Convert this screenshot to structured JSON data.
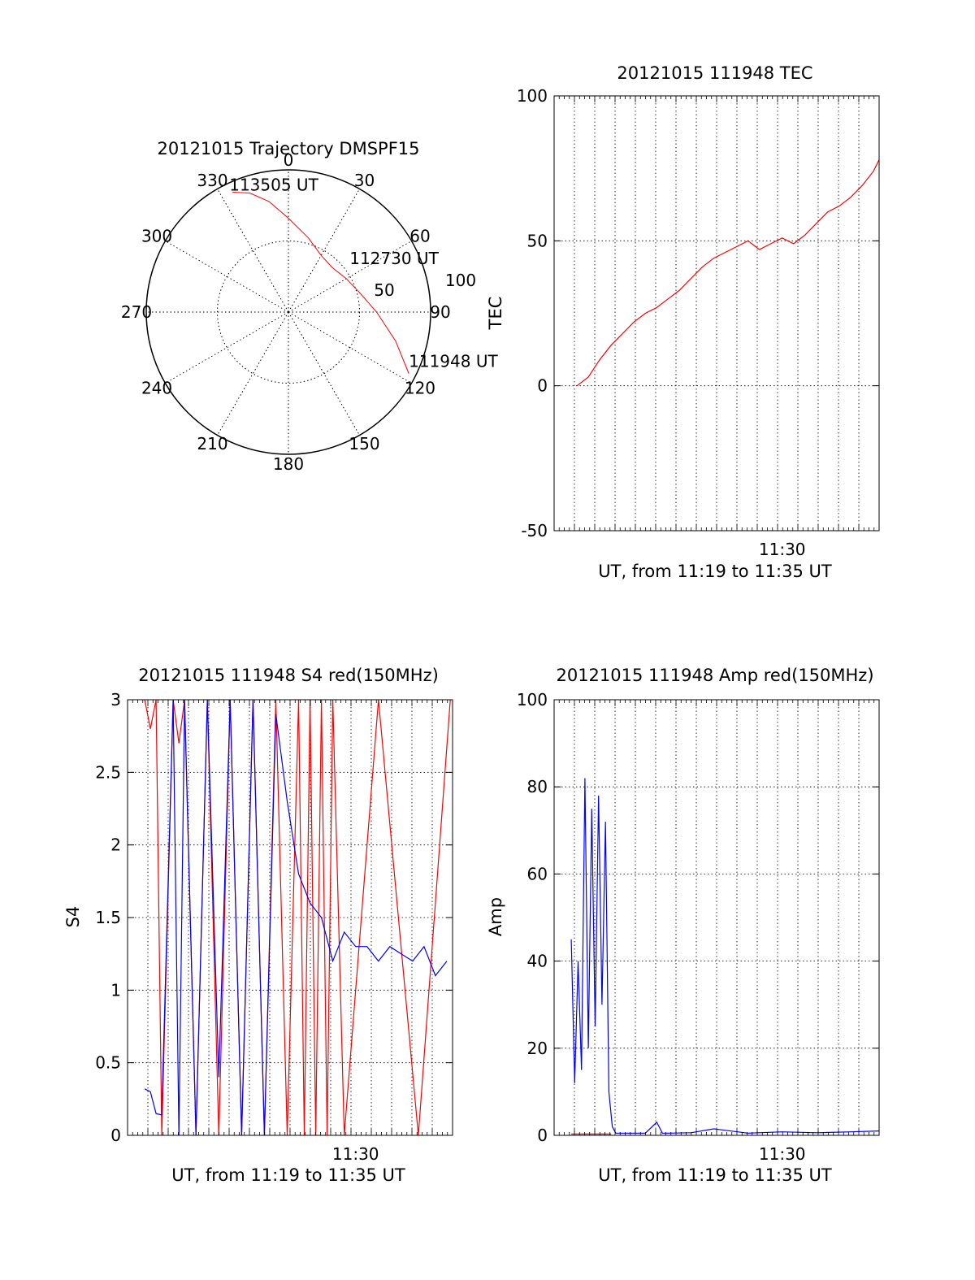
{
  "chart_data": [
    {
      "type": "polar",
      "title": "20121015 Trajectory DMSPF15",
      "azimuth_labels": [
        "0",
        "30",
        "60",
        "90",
        "120",
        "150",
        "180",
        "210",
        "240",
        "270",
        "300",
        "330"
      ],
      "radius_labels": [
        "50",
        "100"
      ],
      "rlim": [
        0,
        100
      ],
      "grid": true,
      "trajectory_color": "#ff0000",
      "trajectory": [
        {
          "az": 117,
          "el_dist": 95
        },
        {
          "az": 105,
          "el_dist": 78
        },
        {
          "az": 90,
          "el_dist": 62
        },
        {
          "az": 75,
          "el_dist": 52
        },
        {
          "az": 60,
          "el_dist": 47
        },
        {
          "az": 45,
          "el_dist": 44
        },
        {
          "az": 30,
          "el_dist": 46
        },
        {
          "az": 15,
          "el_dist": 54
        },
        {
          "az": 0,
          "el_dist": 66
        },
        {
          "az": -10,
          "el_dist": 79
        },
        {
          "az": -18,
          "el_dist": 88
        },
        {
          "az": -25,
          "el_dist": 93
        }
      ],
      "annotations": [
        {
          "text": "113505 UT",
          "az": -25,
          "el_dist": 93
        },
        {
          "text": "112730 UT",
          "az": 60,
          "el_dist": 47
        },
        {
          "text": "111948 UT",
          "az": 117,
          "el_dist": 95
        }
      ]
    },
    {
      "type": "line",
      "title": "20121015 111948 TEC",
      "xlabel": "UT, from 11:19 to 11:35 UT",
      "ylabel": "TEC",
      "xlim": [
        11.3,
        11.585
      ],
      "ylim": [
        -50,
        100
      ],
      "yticks": [
        -50,
        0,
        50,
        100
      ],
      "xtick_labels": [
        {
          "x": 11.5,
          "label": "11:30"
        }
      ],
      "grid": true,
      "series": [
        {
          "color": "#ff0000",
          "x": [
            11.32,
            11.33,
            11.34,
            11.35,
            11.36,
            11.37,
            11.38,
            11.39,
            11.4,
            11.41,
            11.42,
            11.43,
            11.44,
            11.45,
            11.46,
            11.47,
            11.48,
            11.49,
            11.5,
            11.51,
            11.52,
            11.53,
            11.54,
            11.55,
            11.56,
            11.57,
            11.58,
            11.585
          ],
          "values": [
            0,
            3,
            9,
            14,
            18,
            22,
            25,
            27,
            30,
            33,
            37,
            41,
            44,
            46,
            48,
            50,
            47,
            49,
            51,
            49,
            52,
            56,
            60,
            62,
            65,
            69,
            74,
            78
          ]
        }
      ]
    },
    {
      "type": "line",
      "title": "20121015 111948 S4 red(150MHz)",
      "xlabel": "UT, from 11:19 to 11:35 UT",
      "ylabel": "S4",
      "xlim": [
        11.3,
        11.585
      ],
      "ylim": [
        0,
        3
      ],
      "yticks": [
        0,
        0.5,
        1,
        1.5,
        2,
        2.5,
        3
      ],
      "ytick_labels": [
        "0",
        "0.5",
        "1",
        "1.5",
        "2",
        "2.5",
        "3"
      ],
      "xtick_labels": [
        {
          "x": 11.5,
          "label": "11:30"
        }
      ],
      "grid": true,
      "series": [
        {
          "color": "#ff0000",
          "x": [
            11.315,
            11.32,
            11.325,
            11.33,
            11.34,
            11.345,
            11.35,
            11.36,
            11.37,
            11.38,
            11.39,
            11.4,
            11.41,
            11.42,
            11.43,
            11.44,
            11.45,
            11.455,
            11.46,
            11.465,
            11.47,
            11.475,
            11.48,
            11.49,
            11.52,
            11.555,
            11.583
          ],
          "values": [
            3,
            2.8,
            3,
            0,
            3,
            2.7,
            3,
            0,
            3,
            0,
            3,
            0,
            3,
            0,
            3,
            0,
            3,
            0,
            3,
            0,
            3,
            0,
            3,
            0,
            3,
            0,
            3
          ]
        },
        {
          "color": "#0000ff",
          "x": [
            11.315,
            11.32,
            11.325,
            11.33,
            11.34,
            11.345,
            11.35,
            11.36,
            11.37,
            11.38,
            11.39,
            11.4,
            11.41,
            11.42,
            11.43,
            11.44,
            11.45,
            11.46,
            11.47,
            11.48,
            11.49,
            11.5,
            11.51,
            11.52,
            11.53,
            11.54,
            11.55,
            11.56,
            11.57,
            11.58
          ],
          "values": [
            0.32,
            0.3,
            0.15,
            0.14,
            3,
            0,
            3,
            0,
            3,
            0.4,
            3,
            0,
            3,
            0,
            2.9,
            2.3,
            1.8,
            1.6,
            1.5,
            1.2,
            1.4,
            1.3,
            1.3,
            1.2,
            1.3,
            1.25,
            1.2,
            1.3,
            1.1,
            1.2
          ]
        }
      ]
    },
    {
      "type": "line",
      "title": "20121015 111948 Amp red(150MHz)",
      "xlabel": "UT, from 11:19 to 11:35 UT",
      "ylabel": "Amp",
      "xlim": [
        11.3,
        11.585
      ],
      "ylim": [
        0,
        100
      ],
      "yticks": [
        0,
        20,
        40,
        60,
        80,
        100
      ],
      "xtick_labels": [
        {
          "x": 11.5,
          "label": "11:30"
        }
      ],
      "grid": true,
      "series": [
        {
          "color": "#ff0000",
          "x": [
            11.315,
            11.35
          ],
          "values": [
            0.3,
            0.3
          ]
        },
        {
          "color": "#0000ff",
          "x": [
            11.315,
            11.318,
            11.321,
            11.324,
            11.327,
            11.33,
            11.333,
            11.336,
            11.339,
            11.342,
            11.345,
            11.348,
            11.351,
            11.354,
            11.36,
            11.38,
            11.39,
            11.395,
            11.4,
            11.42,
            11.44,
            11.47,
            11.5,
            11.53,
            11.56,
            11.585
          ],
          "values": [
            45,
            12,
            40,
            15,
            82,
            20,
            75,
            25,
            78,
            30,
            72,
            10,
            2,
            0.5,
            0.5,
            0.5,
            3,
            0.5,
            0.5,
            0.6,
            1.5,
            0.5,
            0.8,
            0.6,
            0.8,
            1.0
          ]
        }
      ]
    }
  ]
}
